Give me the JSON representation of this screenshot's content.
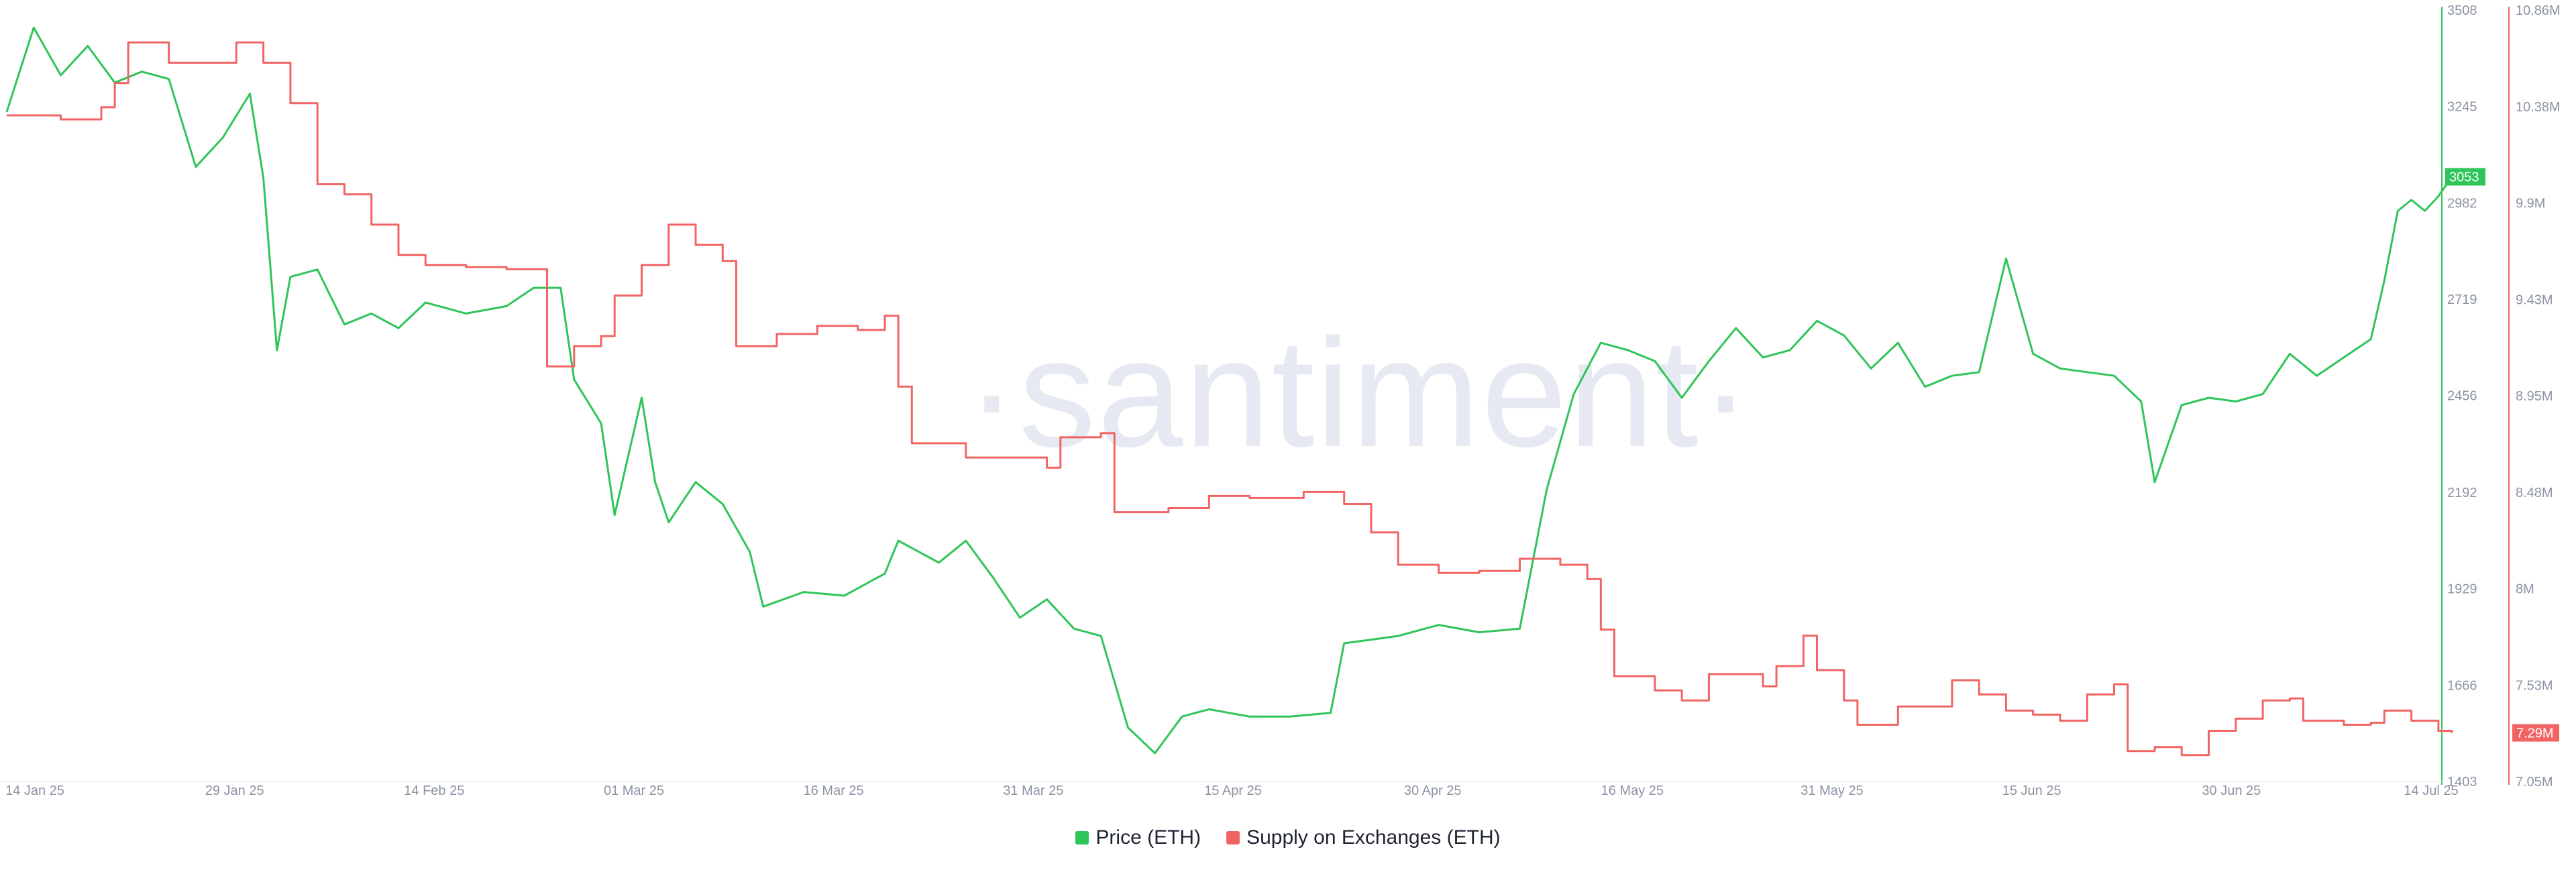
{
  "watermark": "·santiment·",
  "colors": {
    "price": "#2fc55a",
    "supply": "#f06464",
    "axis_text": "#8c93a3",
    "watermark": "#e6e9f1"
  },
  "chart_data": {
    "type": "line",
    "x_ticks": [
      "14 Jan 25",
      "29 Jan 25",
      "14 Feb 25",
      "01 Mar 25",
      "16 Mar 25",
      "31 Mar 25",
      "15 Apr 25",
      "30 Apr 25",
      "16 May 25",
      "31 May 25",
      "15 Jun 25",
      "30 Jun 25",
      "14 Jul 25"
    ],
    "y_left": {
      "ticks": [
        "3508",
        "3245",
        "2982",
        "2719",
        "2456",
        "2192",
        "1929",
        "1666",
        "1403"
      ],
      "range": [
        1403,
        3508
      ]
    },
    "y_right": {
      "ticks": [
        "10.86M",
        "10.38M",
        "9.9M",
        "9.43M",
        "8.95M",
        "8.48M",
        "8M",
        "7.53M",
        "7.05M"
      ],
      "range": [
        7.05,
        10.86
      ],
      "unit": "M"
    },
    "series": [
      {
        "name": "Price (ETH)",
        "axis": "left",
        "last_value_label": "3053",
        "points": [
          [
            "2025-01-14",
            3230
          ],
          [
            "2025-01-16",
            3460
          ],
          [
            "2025-01-18",
            3330
          ],
          [
            "2025-01-20",
            3410
          ],
          [
            "2025-01-22",
            3310
          ],
          [
            "2025-01-24",
            3340
          ],
          [
            "2025-01-26",
            3320
          ],
          [
            "2025-01-28",
            3080
          ],
          [
            "2025-01-30",
            3160
          ],
          [
            "2025-02-01",
            3280
          ],
          [
            "2025-02-02",
            3050
          ],
          [
            "2025-02-03",
            2580
          ],
          [
            "2025-02-04",
            2780
          ],
          [
            "2025-02-06",
            2800
          ],
          [
            "2025-02-08",
            2650
          ],
          [
            "2025-02-10",
            2680
          ],
          [
            "2025-02-12",
            2640
          ],
          [
            "2025-02-14",
            2710
          ],
          [
            "2025-02-17",
            2680
          ],
          [
            "2025-02-20",
            2700
          ],
          [
            "2025-02-22",
            2750
          ],
          [
            "2025-02-24",
            2750
          ],
          [
            "2025-02-25",
            2500
          ],
          [
            "2025-02-27",
            2380
          ],
          [
            "2025-02-28",
            2130
          ],
          [
            "2025-03-02",
            2450
          ],
          [
            "2025-03-03",
            2220
          ],
          [
            "2025-03-04",
            2110
          ],
          [
            "2025-03-06",
            2220
          ],
          [
            "2025-03-08",
            2160
          ],
          [
            "2025-03-10",
            2030
          ],
          [
            "2025-03-11",
            1880
          ],
          [
            "2025-03-14",
            1920
          ],
          [
            "2025-03-17",
            1910
          ],
          [
            "2025-03-20",
            1970
          ],
          [
            "2025-03-21",
            2060
          ],
          [
            "2025-03-24",
            2000
          ],
          [
            "2025-03-26",
            2060
          ],
          [
            "2025-03-28",
            1960
          ],
          [
            "2025-03-30",
            1850
          ],
          [
            "2025-04-01",
            1900
          ],
          [
            "2025-04-03",
            1820
          ],
          [
            "2025-04-05",
            1800
          ],
          [
            "2025-04-07",
            1550
          ],
          [
            "2025-04-09",
            1480
          ],
          [
            "2025-04-11",
            1580
          ],
          [
            "2025-04-13",
            1600
          ],
          [
            "2025-04-16",
            1580
          ],
          [
            "2025-04-19",
            1580
          ],
          [
            "2025-04-22",
            1590
          ],
          [
            "2025-04-23",
            1780
          ],
          [
            "2025-04-25",
            1790
          ],
          [
            "2025-04-27",
            1800
          ],
          [
            "2025-04-30",
            1830
          ],
          [
            "2025-05-03",
            1810
          ],
          [
            "2025-05-06",
            1820
          ],
          [
            "2025-05-08",
            2200
          ],
          [
            "2025-05-10",
            2460
          ],
          [
            "2025-05-12",
            2600
          ],
          [
            "2025-05-14",
            2580
          ],
          [
            "2025-05-16",
            2550
          ],
          [
            "2025-05-18",
            2450
          ],
          [
            "2025-05-20",
            2550
          ],
          [
            "2025-05-22",
            2640
          ],
          [
            "2025-05-24",
            2560
          ],
          [
            "2025-05-26",
            2580
          ],
          [
            "2025-05-28",
            2660
          ],
          [
            "2025-05-30",
            2620
          ],
          [
            "2025-06-01",
            2530
          ],
          [
            "2025-06-03",
            2600
          ],
          [
            "2025-06-05",
            2480
          ],
          [
            "2025-06-07",
            2510
          ],
          [
            "2025-06-09",
            2520
          ],
          [
            "2025-06-11",
            2830
          ],
          [
            "2025-06-13",
            2570
          ],
          [
            "2025-06-15",
            2530
          ],
          [
            "2025-06-17",
            2520
          ],
          [
            "2025-06-19",
            2510
          ],
          [
            "2025-06-21",
            2440
          ],
          [
            "2025-06-22",
            2220
          ],
          [
            "2025-06-24",
            2430
          ],
          [
            "2025-06-26",
            2450
          ],
          [
            "2025-06-28",
            2440
          ],
          [
            "2025-06-30",
            2460
          ],
          [
            "2025-07-02",
            2570
          ],
          [
            "2025-07-04",
            2510
          ],
          [
            "2025-07-06",
            2560
          ],
          [
            "2025-07-08",
            2610
          ],
          [
            "2025-07-09",
            2770
          ],
          [
            "2025-07-10",
            2960
          ],
          [
            "2025-07-11",
            2990
          ],
          [
            "2025-07-12",
            2960
          ],
          [
            "2025-07-13",
            3000
          ],
          [
            "2025-07-14",
            3053
          ]
        ]
      },
      {
        "name": "Supply on Exchanges (ETH)",
        "axis": "right",
        "last_value_label": "7.29M",
        "points": [
          [
            "2025-01-14",
            10.34
          ],
          [
            "2025-01-18",
            10.32
          ],
          [
            "2025-01-21",
            10.38
          ],
          [
            "2025-01-22",
            10.5
          ],
          [
            "2025-01-23",
            10.7
          ],
          [
            "2025-01-25",
            10.7
          ],
          [
            "2025-01-26",
            10.6
          ],
          [
            "2025-01-29",
            10.6
          ],
          [
            "2025-01-31",
            10.7
          ],
          [
            "2025-02-02",
            10.6
          ],
          [
            "2025-02-04",
            10.4
          ],
          [
            "2025-02-06",
            10.0
          ],
          [
            "2025-02-08",
            9.95
          ],
          [
            "2025-02-10",
            9.8
          ],
          [
            "2025-02-12",
            9.65
          ],
          [
            "2025-02-14",
            9.6
          ],
          [
            "2025-02-17",
            9.59
          ],
          [
            "2025-02-20",
            9.58
          ],
          [
            "2025-02-22",
            9.58
          ],
          [
            "2025-02-23",
            9.1
          ],
          [
            "2025-02-25",
            9.2
          ],
          [
            "2025-02-27",
            9.25
          ],
          [
            "2025-02-28",
            9.45
          ],
          [
            "2025-03-02",
            9.6
          ],
          [
            "2025-03-04",
            9.8
          ],
          [
            "2025-03-06",
            9.7
          ],
          [
            "2025-03-08",
            9.62
          ],
          [
            "2025-03-09",
            9.2
          ],
          [
            "2025-03-12",
            9.26
          ],
          [
            "2025-03-15",
            9.3
          ],
          [
            "2025-03-18",
            9.28
          ],
          [
            "2025-03-20",
            9.35
          ],
          [
            "2025-03-21",
            9.0
          ],
          [
            "2025-03-22",
            8.72
          ],
          [
            "2025-03-26",
            8.65
          ],
          [
            "2025-03-30",
            8.65
          ],
          [
            "2025-04-01",
            8.6
          ],
          [
            "2025-04-02",
            8.75
          ],
          [
            "2025-04-05",
            8.77
          ],
          [
            "2025-04-06",
            8.38
          ],
          [
            "2025-04-10",
            8.4
          ],
          [
            "2025-04-13",
            8.46
          ],
          [
            "2025-04-16",
            8.45
          ],
          [
            "2025-04-20",
            8.48
          ],
          [
            "2025-04-23",
            8.42
          ],
          [
            "2025-04-25",
            8.28
          ],
          [
            "2025-04-27",
            8.12
          ],
          [
            "2025-04-30",
            8.08
          ],
          [
            "2025-05-03",
            8.09
          ],
          [
            "2025-05-06",
            8.15
          ],
          [
            "2025-05-09",
            8.12
          ],
          [
            "2025-05-11",
            8.05
          ],
          [
            "2025-05-12",
            7.8
          ],
          [
            "2025-05-13",
            7.57
          ],
          [
            "2025-05-16",
            7.5
          ],
          [
            "2025-05-18",
            7.45
          ],
          [
            "2025-05-20",
            7.58
          ],
          [
            "2025-05-22",
            7.58
          ],
          [
            "2025-05-24",
            7.52
          ],
          [
            "2025-05-25",
            7.62
          ],
          [
            "2025-05-27",
            7.77
          ],
          [
            "2025-05-28",
            7.6
          ],
          [
            "2025-05-30",
            7.45
          ],
          [
            "2025-05-31",
            7.33
          ],
          [
            "2025-06-03",
            7.42
          ],
          [
            "2025-06-06",
            7.42
          ],
          [
            "2025-06-07",
            7.55
          ],
          [
            "2025-06-09",
            7.48
          ],
          [
            "2025-06-11",
            7.4
          ],
          [
            "2025-06-13",
            7.38
          ],
          [
            "2025-06-15",
            7.35
          ],
          [
            "2025-06-17",
            7.48
          ],
          [
            "2025-06-19",
            7.53
          ],
          [
            "2025-06-20",
            7.2
          ],
          [
            "2025-06-22",
            7.22
          ],
          [
            "2025-06-24",
            7.18
          ],
          [
            "2025-06-26",
            7.3
          ],
          [
            "2025-06-28",
            7.36
          ],
          [
            "2025-06-30",
            7.45
          ],
          [
            "2025-07-02",
            7.46
          ],
          [
            "2025-07-03",
            7.35
          ],
          [
            "2025-07-06",
            7.33
          ],
          [
            "2025-07-08",
            7.34
          ],
          [
            "2025-07-09",
            7.4
          ],
          [
            "2025-07-11",
            7.35
          ],
          [
            "2025-07-13",
            7.3
          ],
          [
            "2025-07-14",
            7.29
          ]
        ]
      }
    ],
    "legend": "bottom-center",
    "grid": false
  }
}
